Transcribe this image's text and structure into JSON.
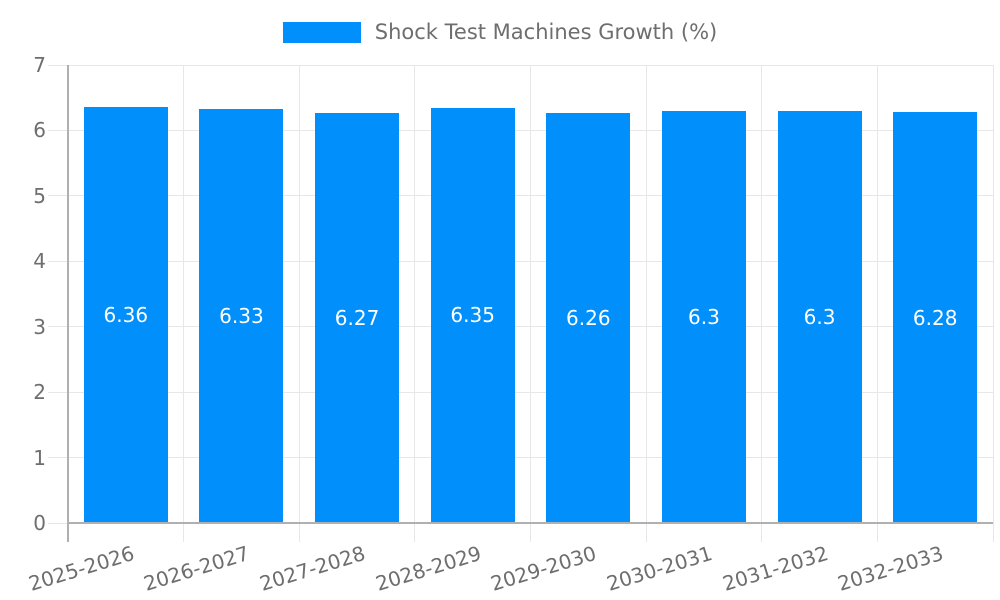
{
  "chart_data": {
    "type": "bar",
    "title": "Shock Test Machines Growth (%)",
    "categories": [
      "2025-2026",
      "2026-2027",
      "2027-2028",
      "2028-2029",
      "2029-2030",
      "2030-2031",
      "2031-2032",
      "2032-2033"
    ],
    "values": [
      6.36,
      6.33,
      6.27,
      6.35,
      6.26,
      6.3,
      6.3,
      6.28
    ],
    "value_labels": [
      "6.36",
      "6.33",
      "6.27",
      "6.35",
      "6.26",
      "6.3",
      "6.3",
      "6.28"
    ],
    "xlabel": "",
    "ylabel": "",
    "ylim": [
      0,
      7
    ],
    "y_ticks": [
      0,
      1,
      2,
      3,
      4,
      5,
      6,
      7
    ],
    "grid": true,
    "legend_position": "top",
    "x_tick_rotation_deg": -17,
    "colors": {
      "bar": "#008FFB",
      "grid": "#e7e7e7",
      "axis": "#b0b0b0",
      "tick_text": "#6e6e6e",
      "data_label": "#ffffff",
      "background": "#ffffff"
    }
  }
}
